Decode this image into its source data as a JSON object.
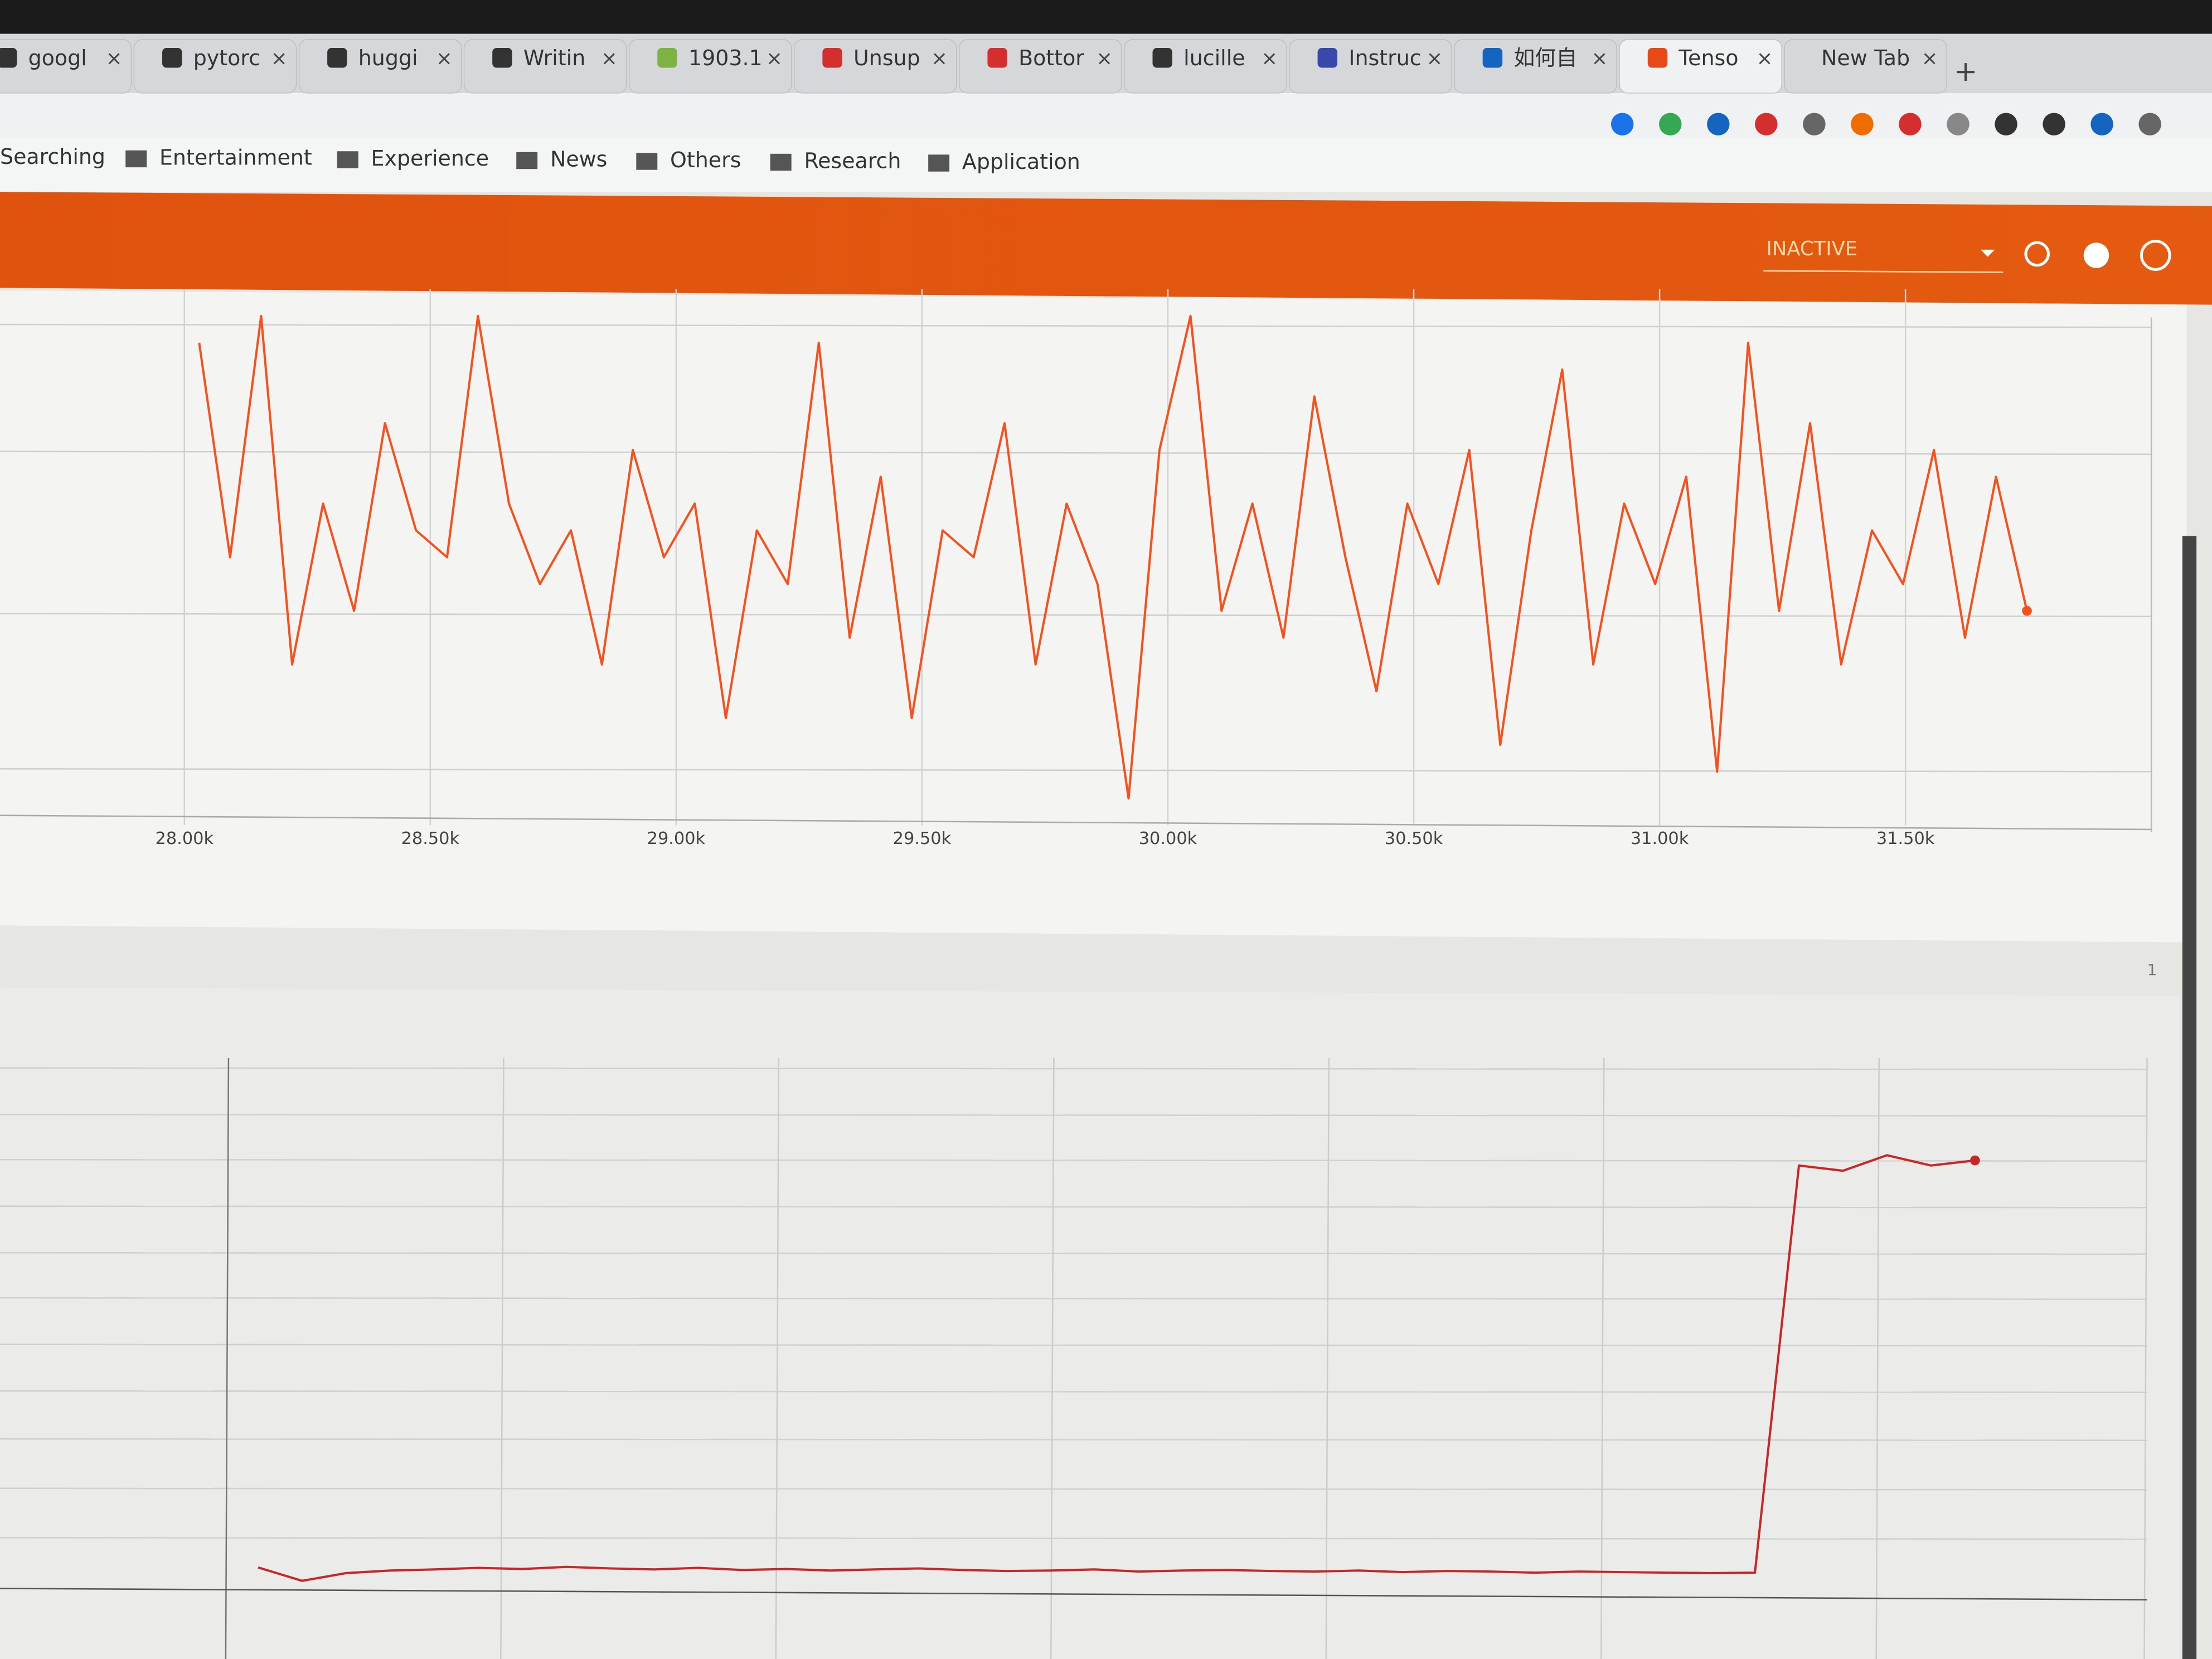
{
  "browser": {
    "tabs": [
      "googl",
      "pytorc",
      "huggi",
      "Writin",
      "1903.1",
      "Unsup",
      "Bottor",
      "lucille",
      "Instruc",
      "如何自",
      "Tenso",
      "New Tab"
    ],
    "bookmarks": [
      "Searching",
      "Entertainment",
      "Experience",
      "News",
      "Others",
      "Research",
      "Application"
    ]
  },
  "header": {
    "run_selector": "INACTIVE"
  },
  "pagination": "1",
  "chart_data": [
    {
      "type": "line",
      "color": "#f4511e",
      "x": [
        28030,
        28093,
        28156,
        28219,
        28282,
        28345,
        28408,
        28471,
        28534,
        28597,
        28660,
        28723,
        28786,
        28849,
        28912,
        28975,
        29038,
        29101,
        29164,
        29227,
        29290,
        29353,
        29416,
        29479,
        29542,
        29605,
        29668,
        29731,
        29794,
        29857,
        29920,
        29983,
        30046,
        30109,
        30172,
        30235,
        30298,
        30361,
        30424,
        30487,
        30550,
        30613,
        30676,
        30739,
        30802,
        30865,
        30928,
        30991,
        31054,
        31117,
        31180,
        31243,
        31306,
        31369,
        31432,
        31495,
        31558,
        31621,
        31684,
        31747
      ],
      "values": [
        0.9,
        0.5,
        0.95,
        0.3,
        0.6,
        0.4,
        0.75,
        0.55,
        0.5,
        0.95,
        0.6,
        0.45,
        0.55,
        0.3,
        0.7,
        0.5,
        0.6,
        0.2,
        0.55,
        0.45,
        0.9,
        0.35,
        0.65,
        0.2,
        0.55,
        0.5,
        0.75,
        0.3,
        0.6,
        0.45,
        0.05,
        0.7,
        0.95,
        0.4,
        0.6,
        0.35,
        0.8,
        0.5,
        0.25,
        0.6,
        0.45,
        0.7,
        0.15,
        0.55,
        0.85,
        0.3,
        0.6,
        0.45,
        0.65,
        0.1,
        0.9,
        0.4,
        0.75,
        0.3,
        0.55,
        0.45,
        0.7,
        0.35,
        0.65,
        0.4
      ],
      "xlim": [
        27625,
        32000
      ],
      "ylim": [
        0,
        1
      ],
      "xticks": [
        {
          "value": 28000,
          "label": "28.00k"
        },
        {
          "value": 28500,
          "label": "28.50k"
        },
        {
          "value": 29000,
          "label": "29.00k"
        },
        {
          "value": 29500,
          "label": "29.50k"
        },
        {
          "value": 30000,
          "label": "30.00k"
        },
        {
          "value": 30500,
          "label": "30.50k"
        },
        {
          "value": 31000,
          "label": "31.00k"
        },
        {
          "value": 31500,
          "label": "31.50k"
        }
      ]
    },
    {
      "type": "line",
      "color": "#c62828",
      "values": [
        0.046,
        0.02,
        0.035,
        0.04,
        0.042,
        0.045,
        0.043,
        0.047,
        0.044,
        0.042,
        0.045,
        0.041,
        0.043,
        0.04,
        0.042,
        0.044,
        0.041,
        0.039,
        0.04,
        0.042,
        0.038,
        0.04,
        0.041,
        0.039,
        0.038,
        0.04,
        0.037,
        0.039,
        0.038,
        0.036,
        0.038,
        0.037,
        0.036,
        0.035,
        0.036,
        0.82,
        0.81,
        0.84,
        0.82,
        0.83
      ],
      "ylim": [
        0,
        1
      ]
    }
  ]
}
